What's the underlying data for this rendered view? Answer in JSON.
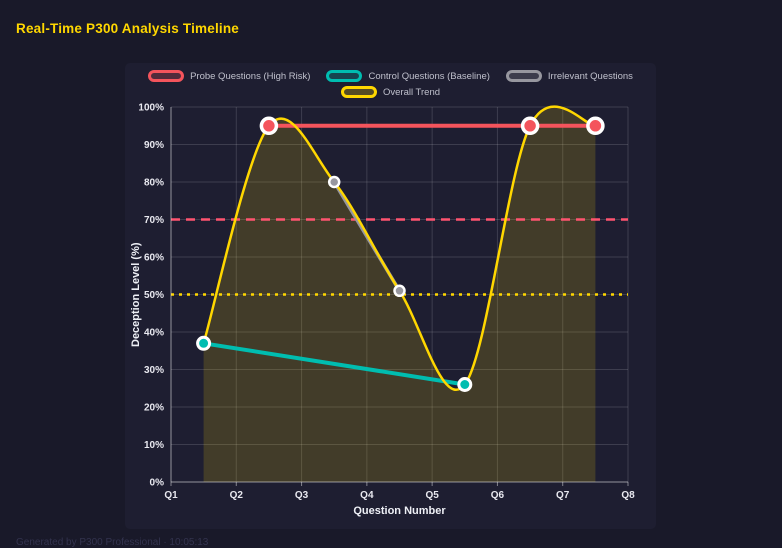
{
  "page": {
    "title": "Real-Time P300 Analysis Timeline",
    "footer": "Generated by P300 Professional · 10:05:13"
  },
  "chart_data": {
    "type": "line",
    "title": "Real-Time P300 Analysis Timeline",
    "xlabel": "Question Number",
    "ylabel": "Deception Level (%)",
    "x_range": [
      1,
      8
    ],
    "x_ticks": [
      "Q1",
      "Q2",
      "Q3",
      "Q4",
      "Q5",
      "Q6",
      "Q7",
      "Q8"
    ],
    "ylim": [
      0,
      100
    ],
    "y_ticks": [
      0,
      10,
      20,
      30,
      40,
      50,
      60,
      70,
      80,
      90,
      100
    ],
    "y_tick_suffix": "%",
    "grid": true,
    "legend_position": "top",
    "grid_color": "rgba(255,255,255,0.14)",
    "axis_color": "rgba(255,255,255,0.45)",
    "series": [
      {
        "name": "Probe Questions (High Risk)",
        "color": "#f4545c",
        "line": "straight",
        "width": 4,
        "point_radius": 7.5,
        "point_stroke": 3.5,
        "points": [
          [
            2.5,
            95
          ],
          [
            6.5,
            95
          ],
          [
            7.5,
            95
          ]
        ]
      },
      {
        "name": "Control Questions (Baseline)",
        "color": "#00bdb0",
        "line": "straight",
        "width": 4,
        "point_radius": 6,
        "point_stroke": 3,
        "points": [
          [
            1.5,
            37
          ],
          [
            5.5,
            26
          ]
        ]
      },
      {
        "name": "Irrelevant Questions",
        "color": "#97979f",
        "line": "straight",
        "width": 3.5,
        "point_radius": 5,
        "point_stroke": 2.5,
        "points": [
          [
            3.5,
            80
          ],
          [
            4.5,
            51
          ]
        ]
      },
      {
        "name": "Overall Trend",
        "color": "#ffd700",
        "line": "spline",
        "width": 2.5,
        "fill": "rgba(255,215,0,0.16)",
        "point_radius": 0,
        "point_stroke": 0,
        "points": [
          [
            1.5,
            37
          ],
          [
            2.5,
            95
          ],
          [
            3.5,
            80
          ],
          [
            4.5,
            51
          ],
          [
            5.5,
            26
          ],
          [
            6.5,
            95
          ],
          [
            7.5,
            95
          ]
        ]
      }
    ],
    "thresholds": [
      {
        "value": 70,
        "color": "#ff5470",
        "dash": "9 6",
        "width": 2.5
      },
      {
        "value": 50,
        "color": "#ffd700",
        "dash": "3 5",
        "width": 2.5
      }
    ]
  }
}
